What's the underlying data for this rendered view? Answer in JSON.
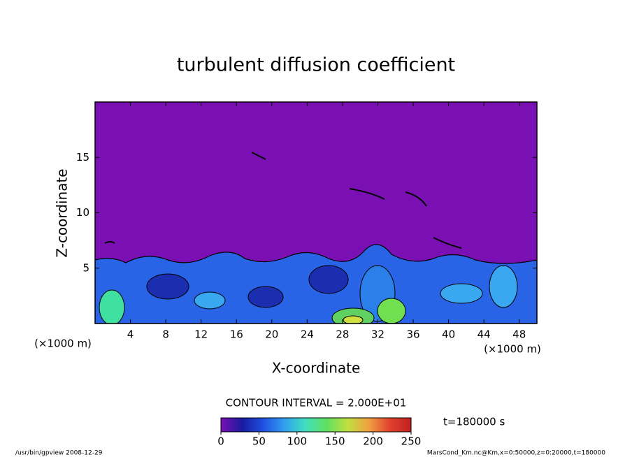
{
  "chart_data": {
    "type": "contour",
    "title": "turbulent diffusion coefficient",
    "x_label": "X-coordinate",
    "y_label": "Z-coordinate",
    "x_unit": "(×1000 m)",
    "y_unit": "(×1000 m)",
    "xlim": [
      0,
      50
    ],
    "xticks": [
      4,
      8,
      12,
      16,
      20,
      24,
      28,
      32,
      36,
      40,
      44,
      48
    ],
    "ylim": [
      0,
      20
    ],
    "yticks": [
      5,
      10,
      15
    ],
    "contour_note": "CONTOUR INTERVAL = 2.000E+01",
    "time_note": "t=180000 s",
    "colorbar": {
      "clim": [
        0,
        250
      ],
      "ticks": [
        0,
        50,
        100,
        150,
        200,
        250
      ],
      "colors": [
        "#7a10b4",
        "#1a1aa0",
        "#2050e0",
        "#30a0f0",
        "#40e0c0",
        "#60e060",
        "#c0e040",
        "#f0a040",
        "#e04030",
        "#c02020"
      ]
    },
    "footer_left": "/usr/bin/gpview   2008-12-29",
    "footer_right": "MarsCond_Km.nc@Km,x=0:50000,z=0:20000,t=180000"
  }
}
